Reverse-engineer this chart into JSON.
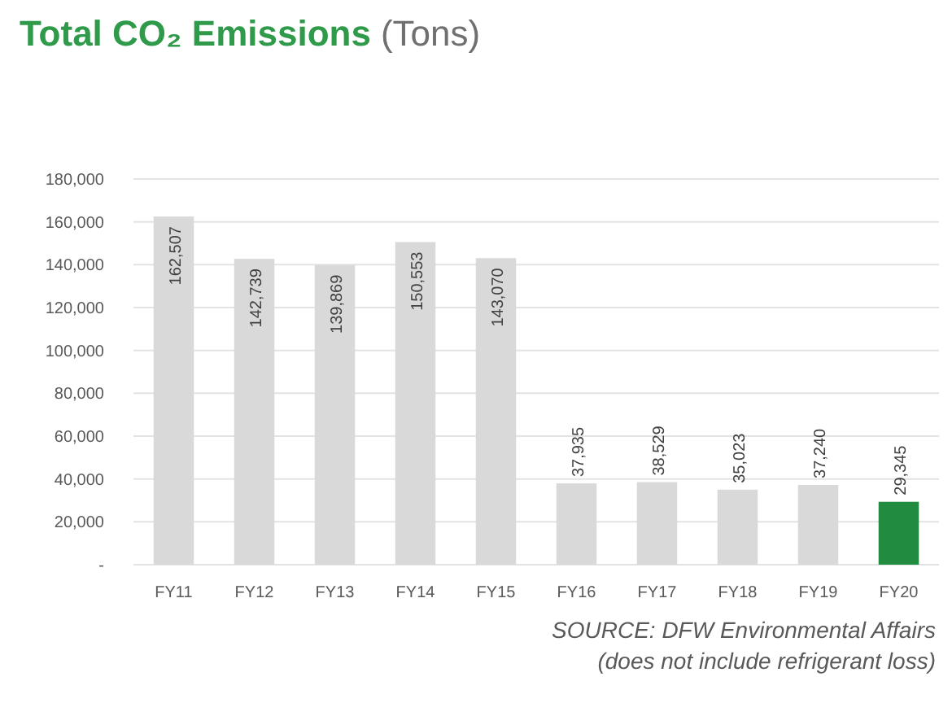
{
  "chart_data": {
    "type": "bar",
    "title": "Total CO₂ Emissions",
    "subtitle": "(Tons)",
    "categories": [
      "FY11",
      "FY12",
      "FY13",
      "FY14",
      "FY15",
      "FY16",
      "FY17",
      "FY18",
      "FY19",
      "FY20"
    ],
    "values": [
      162507,
      142739,
      139869,
      150553,
      143070,
      37935,
      38529,
      35023,
      37240,
      29345
    ],
    "colors": [
      "#d9d9d9",
      "#d9d9d9",
      "#d9d9d9",
      "#d9d9d9",
      "#d9d9d9",
      "#d9d9d9",
      "#d9d9d9",
      "#d9d9d9",
      "#d9d9d9",
      "#218c3f"
    ],
    "ylim": [
      0,
      180000
    ],
    "yticks": [
      {
        "value": 0,
        "label": "-"
      },
      {
        "value": 20000,
        "label": "20,000"
      },
      {
        "value": 40000,
        "label": "40,000"
      },
      {
        "value": 60000,
        "label": "60,000"
      },
      {
        "value": 80000,
        "label": "80,000"
      },
      {
        "value": 100000,
        "label": "100,000"
      },
      {
        "value": 120000,
        "label": "120,000"
      },
      {
        "value": 140000,
        "label": "140,000"
      },
      {
        "value": 160000,
        "label": "160,000"
      },
      {
        "value": 180000,
        "label": "180,000"
      }
    ],
    "grid": "y",
    "value_labels": [
      "162,507",
      "142,739",
      "139,869",
      "150,553",
      "143,070",
      "37,935",
      "38,529",
      "35,023",
      "37,240",
      "29,345"
    ],
    "annotations": [
      "SOURCE:  DFW Environmental Affairs",
      "(does not include refrigerant loss)"
    ]
  }
}
